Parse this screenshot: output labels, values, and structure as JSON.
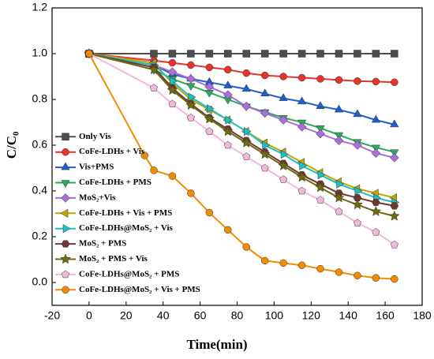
{
  "chart_data": {
    "type": "line",
    "xlabel": "Time(min)",
    "ylabel": "C/C₀",
    "x": [
      0,
      35,
      45,
      55,
      65,
      75,
      85,
      95,
      105,
      115,
      125,
      135,
      145,
      155,
      165
    ],
    "xlim": [
      -20,
      180
    ],
    "xticks": [
      -20,
      0,
      20,
      40,
      60,
      80,
      100,
      120,
      140,
      160,
      180
    ],
    "ylim": [
      -0.1,
      1.2
    ],
    "yticks": [
      {
        "value": 0,
        "label": "0.0"
      },
      {
        "value": 0.2,
        "label": "0.2"
      },
      {
        "value": 0.4,
        "label": "0.4"
      },
      {
        "value": 0.6,
        "label": "0.6"
      },
      {
        "value": 0.8,
        "label": "0.8"
      },
      {
        "value": 1.0,
        "label": "1.0"
      },
      {
        "value": 1.2,
        "label": "1.2"
      }
    ],
    "legend": "lower left",
    "series": [
      {
        "name": "Only Vis",
        "color": "#4d4d4d",
        "marker": "square",
        "values": [
          1,
          1,
          1,
          1,
          1,
          1,
          1,
          1,
          1,
          1,
          1,
          1,
          1,
          1,
          1
        ]
      },
      {
        "name": "CoFe-LDHs + Vis",
        "color": "#e8322c",
        "marker": "circle",
        "values": [
          1,
          0.97,
          0.96,
          0.95,
          0.94,
          0.93,
          0.915,
          0.905,
          0.9,
          0.895,
          0.89,
          0.885,
          0.88,
          0.878,
          0.875
        ]
      },
      {
        "name": "Vis+PMS",
        "color": "#1f5ecf",
        "marker": "triangle-up",
        "values": [
          1,
          0.95,
          0.91,
          0.89,
          0.875,
          0.86,
          0.845,
          0.825,
          0.805,
          0.79,
          0.77,
          0.755,
          0.735,
          0.71,
          0.69
        ]
      },
      {
        "name": "CoFe-LDHs + PMS",
        "color": "#2eaa5e",
        "marker": "triangle-down",
        "values": [
          1,
          0.93,
          0.89,
          0.86,
          0.83,
          0.8,
          0.77,
          0.745,
          0.72,
          0.7,
          0.675,
          0.645,
          0.615,
          0.59,
          0.57
        ]
      },
      {
        "name": "MoS₂+Vis",
        "color": "#a86fd6",
        "marker": "diamond",
        "values": [
          1,
          0.95,
          0.92,
          0.89,
          0.855,
          0.82,
          0.77,
          0.74,
          0.71,
          0.68,
          0.65,
          0.62,
          0.6,
          0.565,
          0.545
        ]
      },
      {
        "name": "CoFe-LDHs + Vis + PMS",
        "color": "#c2a600",
        "marker": "triangle-left",
        "values": [
          1,
          0.96,
          0.87,
          0.8,
          0.755,
          0.71,
          0.66,
          0.61,
          0.57,
          0.525,
          0.48,
          0.44,
          0.41,
          0.39,
          0.37
        ]
      },
      {
        "name": "CoFe-LDHs@MoS₂ + Vis",
        "color": "#1cc0c8",
        "marker": "triangle-right",
        "values": [
          1,
          0.95,
          0.88,
          0.81,
          0.76,
          0.71,
          0.66,
          0.6,
          0.56,
          0.51,
          0.47,
          0.43,
          0.4,
          0.37,
          0.35
        ]
      },
      {
        "name": "MoS₂ + PMS",
        "color": "#6b3a30",
        "marker": "hexagon",
        "values": [
          1,
          0.94,
          0.85,
          0.78,
          0.72,
          0.67,
          0.62,
          0.57,
          0.52,
          0.47,
          0.43,
          0.39,
          0.37,
          0.35,
          0.335
        ]
      },
      {
        "name": "MoS₂ + PMS + Vis",
        "color": "#6e6a10",
        "marker": "star",
        "values": [
          1,
          0.93,
          0.84,
          0.775,
          0.715,
          0.66,
          0.61,
          0.56,
          0.51,
          0.46,
          0.415,
          0.37,
          0.34,
          0.31,
          0.29
        ]
      },
      {
        "name": "CoFe-LDHs@MoS₂ + PMS",
        "color": "#f2b8dc",
        "marker": "pentagon",
        "values": [
          1,
          0.85,
          0.78,
          0.72,
          0.66,
          0.6,
          0.55,
          0.5,
          0.45,
          0.4,
          0.36,
          0.31,
          0.26,
          0.22,
          0.165
        ]
      },
      {
        "name": "CoFe-LDHs@MoS₂ + Vis + PMS",
        "color": "#f08c00",
        "marker": "circle",
        "x": [
          0,
          30,
          35,
          45,
          55,
          65,
          75,
          85,
          95,
          105,
          115,
          125,
          135,
          145,
          155,
          165
        ],
        "values": [
          1,
          0.555,
          0.49,
          0.465,
          0.39,
          0.305,
          0.23,
          0.155,
          0.095,
          0.085,
          0.075,
          0.06,
          0.045,
          0.03,
          0.02,
          0.015
        ]
      }
    ]
  }
}
